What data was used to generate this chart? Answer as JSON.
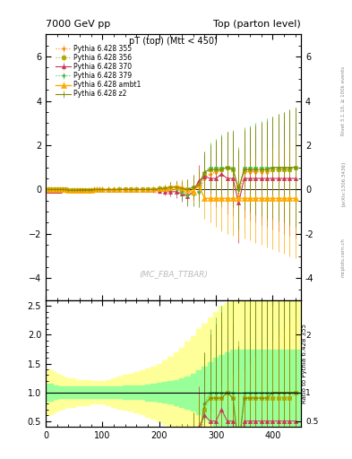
{
  "title_left": "7000 GeV pp",
  "title_right": "Top (parton level)",
  "plot_title": "pT (top) (Mtt < 450)",
  "watermark": "(MC_FBA_TTBAR)",
  "rivet_label": "Rivet 3.1.10, ≥ 100k events",
  "arxiv_label": "[arXiv:1306.3436]",
  "mcplots_label": "mcplots.cern.ch",
  "ylabel_ratio": "Ratio to Pythia 6.428 355",
  "xlim": [
    0,
    450
  ],
  "ylim_main": [
    -5,
    7
  ],
  "ylim_ratio": [
    0.4,
    2.6
  ],
  "yticks_main": [
    -4,
    -2,
    0,
    2,
    4,
    6
  ],
  "yticks_ratio": [
    0.5,
    1.0,
    1.5,
    2.0,
    2.5
  ],
  "xticks": [
    0,
    100,
    200,
    300,
    400
  ],
  "series": [
    {
      "label": "Pythia 6.428 355",
      "color": "#ff8800",
      "linestyle": ":",
      "marker": "*",
      "markersize": 3,
      "linewidth": 0.8,
      "x": [
        5,
        10,
        15,
        20,
        25,
        30,
        35,
        40,
        45,
        50,
        55,
        60,
        65,
        70,
        75,
        80,
        85,
        90,
        95,
        100,
        110,
        120,
        130,
        140,
        150,
        160,
        170,
        180,
        190,
        200,
        210,
        220,
        230,
        240,
        250,
        260,
        270,
        280,
        290,
        300,
        310,
        320,
        330,
        340,
        350,
        360,
        370,
        380,
        390,
        400,
        410,
        420,
        430,
        440
      ],
      "y": [
        0,
        0,
        0,
        0,
        0,
        0,
        0,
        -0.05,
        -0.05,
        -0.05,
        -0.05,
        -0.02,
        -0.02,
        -0.02,
        -0.02,
        -0.02,
        -0.01,
        -0.01,
        -0.01,
        -0.01,
        -0.01,
        -0.01,
        0,
        0,
        0,
        0,
        0,
        0,
        0,
        0,
        0,
        0,
        0,
        -0.1,
        -0.2,
        -0.2,
        -0.1,
        0.5,
        0.7,
        0.8,
        0.9,
        1.0,
        0.9,
        -0.3,
        0.8,
        0.8,
        0.8,
        0.8,
        0.8,
        0.9,
        0.9,
        0.9,
        0.9,
        1.0
      ],
      "yerr": [
        0.1,
        0.1,
        0.08,
        0.08,
        0.07,
        0.07,
        0.07,
        0.07,
        0.07,
        0.07,
        0.07,
        0.06,
        0.06,
        0.06,
        0.06,
        0.06,
        0.06,
        0.06,
        0.06,
        0.06,
        0.07,
        0.07,
        0.08,
        0.08,
        0.09,
        0.09,
        0.1,
        0.1,
        0.12,
        0.14,
        0.18,
        0.22,
        0.28,
        0.35,
        0.45,
        0.55,
        0.7,
        0.9,
        1.1,
        1.3,
        1.5,
        1.6,
        1.7,
        1.8,
        1.8,
        1.9,
        2.0,
        2.1,
        2.2,
        2.3,
        2.4,
        2.5,
        2.6,
        2.7
      ]
    },
    {
      "label": "Pythia 6.428 356",
      "color": "#aaaa00",
      "linestyle": ":",
      "marker": "s",
      "markersize": 3,
      "linewidth": 0.8,
      "x": [
        5,
        10,
        15,
        20,
        25,
        30,
        35,
        40,
        45,
        50,
        55,
        60,
        65,
        70,
        75,
        80,
        85,
        90,
        95,
        100,
        110,
        120,
        130,
        140,
        150,
        160,
        170,
        180,
        190,
        200,
        210,
        220,
        230,
        240,
        250,
        260,
        270,
        280,
        290,
        300,
        310,
        320,
        330,
        340,
        350,
        360,
        370,
        380,
        390,
        400,
        410,
        420,
        430,
        440
      ],
      "y": [
        0,
        0,
        0,
        0,
        0,
        0,
        0,
        -0.04,
        -0.04,
        -0.04,
        -0.04,
        -0.02,
        -0.02,
        -0.02,
        -0.02,
        -0.02,
        -0.01,
        -0.01,
        -0.01,
        -0.01,
        -0.01,
        -0.01,
        0,
        0,
        0,
        0,
        0,
        0,
        0,
        0.05,
        0.05,
        0.1,
        0.1,
        0.0,
        0.0,
        0.1,
        0.2,
        0.7,
        0.9,
        0.9,
        0.9,
        1.0,
        0.9,
        0.1,
        0.9,
        0.9,
        0.9,
        0.9,
        0.9,
        0.9,
        0.9,
        0.9,
        0.9,
        1.0
      ],
      "yerr": [
        0.1,
        0.1,
        0.08,
        0.08,
        0.07,
        0.07,
        0.07,
        0.07,
        0.07,
        0.07,
        0.07,
        0.06,
        0.06,
        0.06,
        0.06,
        0.06,
        0.06,
        0.06,
        0.06,
        0.06,
        0.07,
        0.07,
        0.08,
        0.08,
        0.09,
        0.09,
        0.1,
        0.1,
        0.12,
        0.14,
        0.18,
        0.22,
        0.28,
        0.35,
        0.45,
        0.55,
        0.7,
        0.9,
        1.1,
        1.3,
        1.5,
        1.6,
        1.7,
        1.8,
        1.8,
        1.9,
        2.0,
        2.1,
        2.2,
        2.3,
        2.4,
        2.5,
        2.6,
        2.7
      ]
    },
    {
      "label": "Pythia 6.428 370",
      "color": "#cc3355",
      "linestyle": "-",
      "marker": "^",
      "markersize": 3,
      "linewidth": 0.8,
      "x": [
        5,
        10,
        15,
        20,
        25,
        30,
        35,
        40,
        45,
        50,
        55,
        60,
        65,
        70,
        75,
        80,
        85,
        90,
        95,
        100,
        110,
        120,
        130,
        140,
        150,
        160,
        170,
        180,
        190,
        200,
        210,
        220,
        230,
        240,
        250,
        260,
        270,
        280,
        290,
        300,
        310,
        320,
        330,
        340,
        350,
        360,
        370,
        380,
        390,
        400,
        410,
        420,
        430,
        440
      ],
      "y": [
        -0.05,
        -0.05,
        -0.05,
        -0.05,
        -0.05,
        -0.04,
        -0.04,
        -0.04,
        -0.04,
        -0.04,
        -0.03,
        -0.03,
        -0.03,
        -0.03,
        -0.03,
        -0.02,
        -0.02,
        -0.02,
        -0.02,
        -0.02,
        -0.02,
        -0.02,
        -0.01,
        -0.01,
        -0.01,
        -0.01,
        -0.01,
        -0.01,
        -0.01,
        -0.05,
        -0.1,
        -0.1,
        -0.1,
        -0.2,
        -0.3,
        -0.1,
        0.4,
        0.6,
        0.5,
        0.5,
        0.7,
        0.5,
        0.5,
        -0.6,
        0.5,
        0.5,
        0.5,
        0.5,
        0.5,
        0.5,
        0.5,
        0.5,
        0.5,
        0.5
      ],
      "yerr": [
        0.1,
        0.1,
        0.08,
        0.08,
        0.07,
        0.07,
        0.07,
        0.07,
        0.07,
        0.07,
        0.07,
        0.06,
        0.06,
        0.06,
        0.06,
        0.06,
        0.06,
        0.06,
        0.06,
        0.06,
        0.07,
        0.07,
        0.08,
        0.08,
        0.09,
        0.09,
        0.1,
        0.1,
        0.12,
        0.14,
        0.18,
        0.22,
        0.28,
        0.35,
        0.45,
        0.55,
        0.7,
        0.9,
        1.1,
        1.3,
        1.5,
        1.6,
        1.7,
        1.8,
        1.8,
        1.9,
        2.0,
        2.1,
        2.2,
        2.3,
        2.4,
        2.5,
        2.6,
        2.7
      ]
    },
    {
      "label": "Pythia 6.428 379",
      "color": "#44bb44",
      "linestyle": ":",
      "marker": "*",
      "markersize": 3,
      "linewidth": 0.8,
      "x": [
        5,
        10,
        15,
        20,
        25,
        30,
        35,
        40,
        45,
        50,
        55,
        60,
        65,
        70,
        75,
        80,
        85,
        90,
        95,
        100,
        110,
        120,
        130,
        140,
        150,
        160,
        170,
        180,
        190,
        200,
        210,
        220,
        230,
        240,
        250,
        260,
        270,
        280,
        290,
        300,
        310,
        320,
        330,
        340,
        350,
        360,
        370,
        380,
        390,
        400,
        410,
        420,
        430,
        440
      ],
      "y": [
        0,
        0,
        0,
        0,
        0,
        0,
        0,
        -0.03,
        -0.03,
        -0.03,
        -0.03,
        -0.02,
        -0.02,
        -0.02,
        -0.02,
        -0.02,
        -0.01,
        -0.01,
        -0.01,
        -0.01,
        -0.01,
        -0.01,
        0,
        0,
        0,
        0,
        0,
        0,
        0,
        0,
        0,
        0,
        0,
        -0.15,
        -0.25,
        -0.2,
        -0.1,
        0.8,
        1.0,
        1.0,
        1.0,
        1.0,
        1.0,
        0.0,
        1.0,
        1.0,
        1.0,
        1.0,
        1.0,
        1.0,
        1.0,
        1.0,
        1.0,
        1.0
      ],
      "yerr": [
        0.1,
        0.1,
        0.08,
        0.08,
        0.07,
        0.07,
        0.07,
        0.07,
        0.07,
        0.07,
        0.07,
        0.06,
        0.06,
        0.06,
        0.06,
        0.06,
        0.06,
        0.06,
        0.06,
        0.06,
        0.07,
        0.07,
        0.08,
        0.08,
        0.09,
        0.09,
        0.1,
        0.1,
        0.12,
        0.14,
        0.18,
        0.22,
        0.28,
        0.35,
        0.45,
        0.55,
        0.7,
        0.9,
        1.1,
        1.3,
        1.5,
        1.6,
        1.7,
        1.8,
        1.8,
        1.9,
        2.0,
        2.1,
        2.2,
        2.3,
        2.4,
        2.5,
        2.6,
        2.7
      ]
    },
    {
      "label": "Pythia 6.428 ambt1",
      "color": "#ffaa00",
      "linestyle": "-",
      "marker": "^",
      "markersize": 4,
      "linewidth": 1.0,
      "x": [
        5,
        10,
        15,
        20,
        25,
        30,
        35,
        40,
        45,
        50,
        55,
        60,
        65,
        70,
        75,
        80,
        85,
        90,
        95,
        100,
        110,
        120,
        130,
        140,
        150,
        160,
        170,
        180,
        190,
        200,
        210,
        220,
        230,
        240,
        250,
        260,
        270,
        280,
        290,
        300,
        310,
        320,
        330,
        340,
        350,
        360,
        370,
        380,
        390,
        400,
        410,
        420,
        430,
        440
      ],
      "y": [
        0,
        0,
        0,
        0,
        0,
        0,
        0,
        -0.02,
        -0.02,
        -0.02,
        -0.02,
        -0.01,
        -0.01,
        -0.01,
        -0.01,
        -0.01,
        0,
        0,
        0,
        0,
        0,
        0,
        0,
        0,
        0,
        0,
        0,
        0,
        0,
        0.05,
        0.05,
        0.1,
        0.15,
        0.1,
        0.0,
        -0.1,
        0.2,
        -0.4,
        -0.4,
        -0.4,
        -0.4,
        -0.4,
        -0.4,
        -0.4,
        -0.4,
        -0.4,
        -0.4,
        -0.4,
        -0.4,
        -0.4,
        -0.4,
        -0.4,
        -0.4,
        -0.4
      ],
      "yerr": [
        0.1,
        0.1,
        0.08,
        0.08,
        0.07,
        0.07,
        0.07,
        0.07,
        0.07,
        0.07,
        0.07,
        0.06,
        0.06,
        0.06,
        0.06,
        0.06,
        0.06,
        0.06,
        0.06,
        0.06,
        0.07,
        0.07,
        0.08,
        0.08,
        0.09,
        0.09,
        0.1,
        0.1,
        0.12,
        0.14,
        0.18,
        0.22,
        0.28,
        0.35,
        0.45,
        0.55,
        0.7,
        0.9,
        1.1,
        1.3,
        1.5,
        1.6,
        1.7,
        1.8,
        1.8,
        1.9,
        2.0,
        2.1,
        2.2,
        2.3,
        2.4,
        2.5,
        2.6,
        2.7
      ]
    },
    {
      "label": "Pythia 6.428 z2",
      "color": "#888800",
      "linestyle": "-",
      "marker": "+",
      "markersize": 3,
      "linewidth": 0.8,
      "x": [
        5,
        10,
        15,
        20,
        25,
        30,
        35,
        40,
        45,
        50,
        55,
        60,
        65,
        70,
        75,
        80,
        85,
        90,
        95,
        100,
        110,
        120,
        130,
        140,
        150,
        160,
        170,
        180,
        190,
        200,
        210,
        220,
        230,
        240,
        250,
        260,
        270,
        280,
        290,
        300,
        310,
        320,
        330,
        340,
        350,
        360,
        370,
        380,
        390,
        400,
        410,
        420,
        430,
        440
      ],
      "y": [
        0,
        0,
        0,
        0,
        0,
        0,
        0,
        -0.03,
        -0.03,
        -0.03,
        -0.03,
        -0.01,
        -0.01,
        -0.01,
        -0.01,
        -0.01,
        0,
        0,
        0,
        0,
        0,
        0,
        0,
        0,
        0,
        0,
        0,
        0,
        0,
        0.05,
        0.05,
        0.1,
        0.1,
        0.05,
        0.0,
        0.1,
        0.2,
        0.8,
        0.9,
        0.9,
        0.9,
        1.0,
        0.9,
        0.0,
        0.9,
        0.9,
        0.9,
        0.9,
        0.9,
        1.0,
        1.0,
        1.0,
        1.0,
        1.0
      ],
      "yerr": [
        0.1,
        0.1,
        0.08,
        0.08,
        0.07,
        0.07,
        0.07,
        0.07,
        0.07,
        0.07,
        0.07,
        0.06,
        0.06,
        0.06,
        0.06,
        0.06,
        0.06,
        0.06,
        0.06,
        0.06,
        0.07,
        0.07,
        0.08,
        0.08,
        0.09,
        0.09,
        0.1,
        0.1,
        0.12,
        0.14,
        0.18,
        0.22,
        0.28,
        0.35,
        0.45,
        0.55,
        0.7,
        0.9,
        1.1,
        1.3,
        1.5,
        1.6,
        1.7,
        1.8,
        1.8,
        1.9,
        2.0,
        2.1,
        2.2,
        2.3,
        2.4,
        2.5,
        2.6,
        2.7
      ]
    }
  ],
  "ratio_band_x": [
    0,
    5,
    10,
    15,
    20,
    25,
    30,
    35,
    40,
    45,
    50,
    55,
    60,
    65,
    70,
    75,
    80,
    85,
    90,
    95,
    100,
    110,
    120,
    130,
    140,
    150,
    160,
    170,
    180,
    190,
    200,
    210,
    220,
    230,
    240,
    250,
    260,
    270,
    280,
    290,
    300,
    310,
    320,
    330,
    340,
    350,
    360,
    370,
    380,
    390,
    400,
    410,
    420,
    430,
    440,
    450
  ],
  "ratio_band_green": [
    0.15,
    0.15,
    0.15,
    0.12,
    0.12,
    0.1,
    0.1,
    0.1,
    0.1,
    0.1,
    0.1,
    0.1,
    0.1,
    0.1,
    0.1,
    0.1,
    0.1,
    0.1,
    0.1,
    0.1,
    0.1,
    0.1,
    0.1,
    0.1,
    0.12,
    0.12,
    0.12,
    0.12,
    0.14,
    0.15,
    0.16,
    0.18,
    0.2,
    0.22,
    0.25,
    0.28,
    0.32,
    0.38,
    0.45,
    0.52,
    0.6,
    0.65,
    0.7,
    0.75,
    0.75,
    0.75,
    0.75,
    0.75,
    0.75,
    0.75,
    0.75,
    0.75,
    0.75,
    0.75,
    0.75,
    0.75
  ],
  "ratio_band_yellow": [
    0.4,
    0.4,
    0.38,
    0.35,
    0.32,
    0.3,
    0.28,
    0.26,
    0.25,
    0.25,
    0.25,
    0.22,
    0.22,
    0.22,
    0.22,
    0.22,
    0.2,
    0.2,
    0.2,
    0.2,
    0.2,
    0.22,
    0.25,
    0.28,
    0.3,
    0.32,
    0.35,
    0.38,
    0.42,
    0.45,
    0.5,
    0.55,
    0.62,
    0.7,
    0.78,
    0.88,
    0.98,
    1.1,
    1.2,
    1.3,
    1.4,
    1.5,
    1.55,
    1.6,
    1.6,
    1.6,
    1.6,
    1.6,
    1.6,
    1.6,
    1.6,
    1.6,
    1.6,
    1.6,
    1.6,
    1.6
  ]
}
